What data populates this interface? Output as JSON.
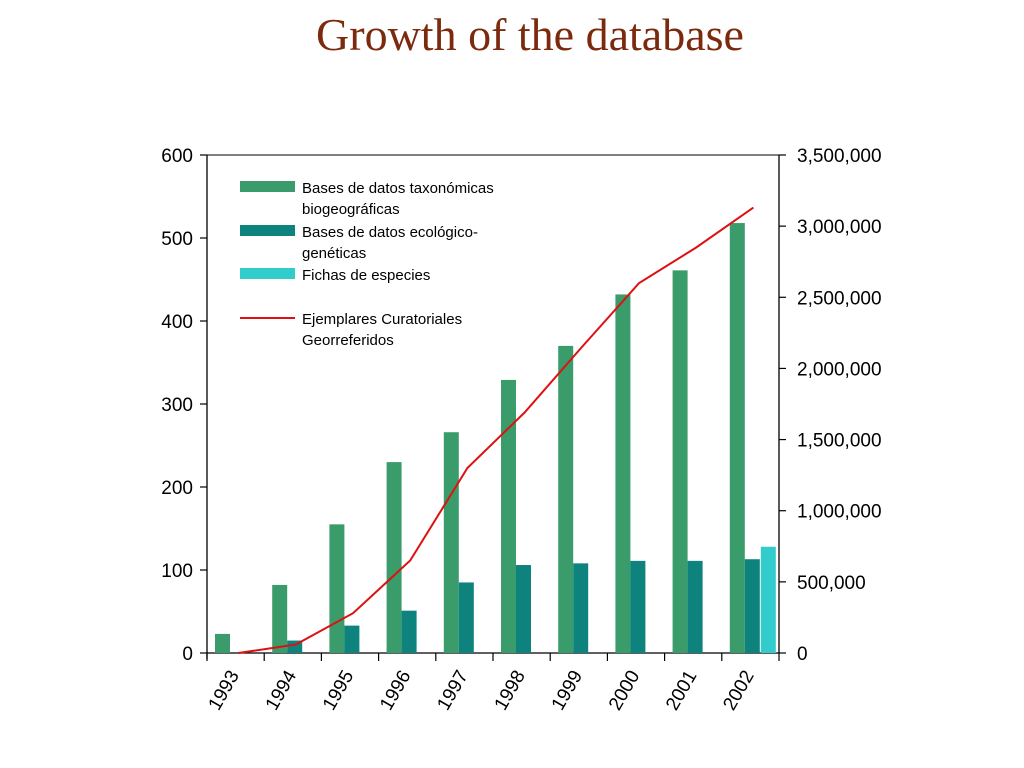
{
  "slide": {
    "title": "Growth of the database"
  },
  "chart_data": {
    "type": "bar",
    "categories": [
      "1993",
      "1994",
      "1995",
      "1996",
      "1997",
      "1998",
      "1999",
      "2000",
      "2001",
      "2002"
    ],
    "y_left": {
      "ylim": [
        0,
        600
      ],
      "ticks": [
        "0",
        "100",
        "200",
        "300",
        "400",
        "500",
        "600"
      ]
    },
    "y_right": {
      "ylim": [
        0,
        3500000
      ],
      "ticks": [
        "0",
        "500,000",
        "1,000,000",
        "1,500,000",
        "2,000,000",
        "2,500,000",
        "3,000,000",
        "3,500,000"
      ]
    },
    "colors": {
      "green": "#3a9c6a",
      "teal": "#0e837d",
      "cyan": "#33cccc",
      "line": "#dd1111"
    },
    "series": [
      {
        "name": "Bases de datos taxonómicas biogeográficas",
        "axis": "left",
        "kind": "bar",
        "legend_lines": [
          "Bases de datos taxonómicas",
          "biogeográficas"
        ],
        "values": [
          23,
          82,
          155,
          230,
          266,
          329,
          370,
          432,
          461,
          518
        ]
      },
      {
        "name": "Bases de datos ecológico-genéticas",
        "axis": "left",
        "kind": "bar",
        "legend_lines": [
          "Bases de datos ecológico-",
          "genéticas"
        ],
        "values": [
          null,
          15,
          33,
          51,
          85,
          106,
          108,
          111,
          111,
          113
        ]
      },
      {
        "name": "Fichas de especies",
        "axis": "left",
        "kind": "bar",
        "legend_lines": [
          "Fichas de especies"
        ],
        "values": [
          null,
          null,
          null,
          null,
          null,
          null,
          null,
          null,
          null,
          128
        ]
      },
      {
        "name": "Ejemplares Curatoriales Georreferidos",
        "axis": "right",
        "kind": "line",
        "legend_lines": [
          "Ejemplares Curatoriales",
          "Georreferidos"
        ],
        "values": [
          0,
          60000,
          280000,
          650000,
          1300000,
          1690000,
          2150000,
          2600000,
          2850000,
          3130000
        ]
      }
    ]
  }
}
